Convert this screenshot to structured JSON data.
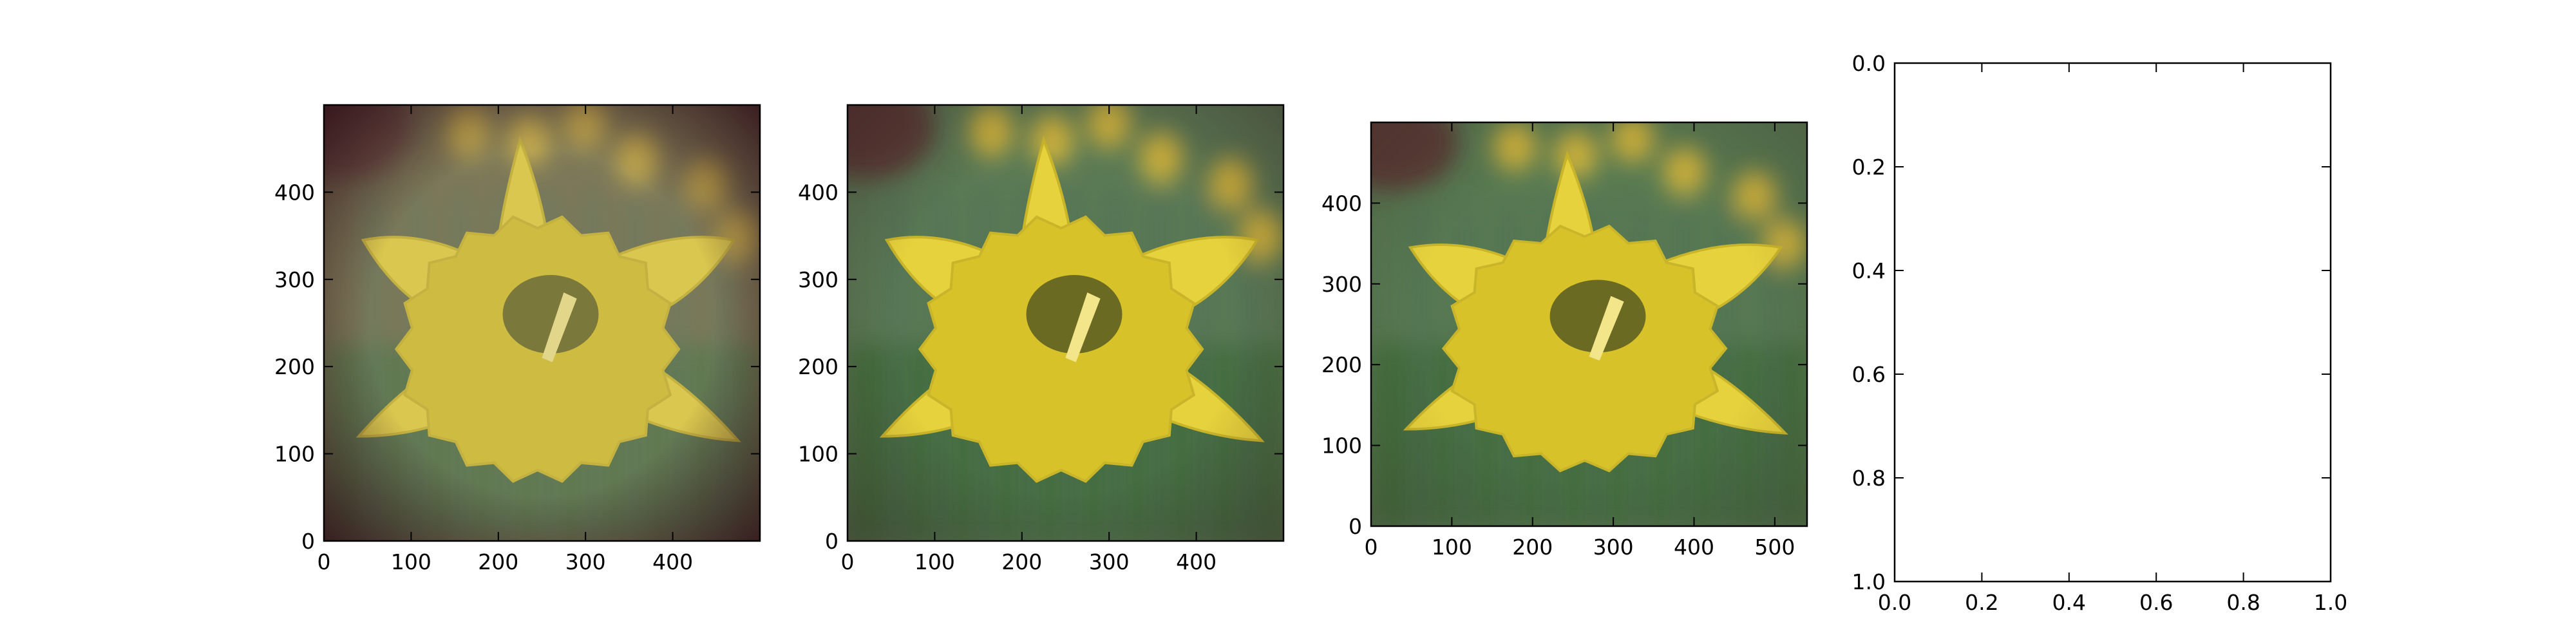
{
  "chart_data": [
    {
      "type": "image",
      "title": "",
      "image_description": "daffodil photo with strong vignette",
      "xlim": [
        0,
        500
      ],
      "ylim": [
        500,
        0
      ],
      "xticks": [
        0,
        100,
        200,
        300,
        400
      ],
      "yticks": [
        0,
        100,
        200,
        300,
        400
      ],
      "style": {
        "vignette": 0.85,
        "saturation": 0.85,
        "bg": "#6d6a48"
      }
    },
    {
      "type": "image",
      "title": "",
      "image_description": "daffodil photo with light vignette",
      "xlim": [
        0,
        500
      ],
      "ylim": [
        500,
        0
      ],
      "xticks": [
        0,
        100,
        200,
        300,
        400
      ],
      "yticks": [
        0,
        100,
        200,
        300,
        400
      ],
      "style": {
        "vignette": 0.35,
        "saturation": 1.0,
        "bg": "#5b7a55"
      }
    },
    {
      "type": "image",
      "title": "",
      "image_description": "daffodil photo, original",
      "xlim": [
        0,
        540
      ],
      "ylim": [
        500,
        0
      ],
      "xticks": [
        0,
        100,
        200,
        300,
        400,
        500
      ],
      "yticks": [
        0,
        100,
        200,
        300,
        400
      ],
      "style": {
        "vignette": 0.2,
        "saturation": 1.0,
        "bg": "#587a52"
      }
    },
    {
      "type": "empty",
      "title": "",
      "xlim": [
        0.0,
        1.0
      ],
      "ylim": [
        0.0,
        1.0
      ],
      "xticks": [
        "0.0",
        "0.2",
        "0.4",
        "0.6",
        "0.8",
        "1.0"
      ],
      "yticks": [
        "0.0",
        "0.2",
        "0.4",
        "0.6",
        "0.8",
        "1.0"
      ]
    }
  ],
  "colors": {
    "petal": "#e6d23c",
    "petal_shade": "#c9b52a",
    "trumpet": "#d8c22a",
    "center": "#6b6a22",
    "stamen": "#f2e58a",
    "blur_flower": "#d9b83a",
    "foliage": "#4f6f55"
  }
}
